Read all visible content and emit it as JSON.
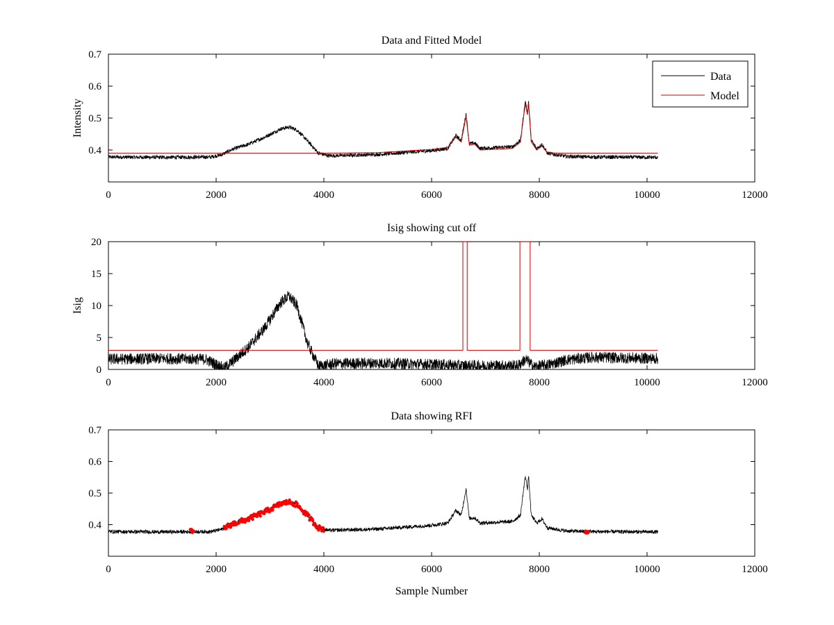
{
  "chart_data": [
    {
      "type": "line",
      "title": "Data and Fitted Model",
      "xlabel": "",
      "ylabel": "Intensity",
      "xlim": [
        0,
        12000
      ],
      "ylim": [
        0.3,
        0.7
      ],
      "xticks": [
        0,
        2000,
        4000,
        6000,
        8000,
        10000,
        12000
      ],
      "yticks": [
        0.4,
        0.5,
        0.6,
        0.7
      ],
      "legend_position": "top-right",
      "series": [
        {
          "name": "Data",
          "color": "#000000",
          "points": [
            [
              0,
              0.378
            ],
            [
              1000,
              0.377
            ],
            [
              1900,
              0.378
            ],
            [
              2100,
              0.385
            ],
            [
              2300,
              0.402
            ],
            [
              2600,
              0.418
            ],
            [
              2900,
              0.44
            ],
            [
              3200,
              0.466
            ],
            [
              3350,
              0.472
            ],
            [
              3500,
              0.463
            ],
            [
              3700,
              0.428
            ],
            [
              3900,
              0.39
            ],
            [
              4100,
              0.382
            ],
            [
              5000,
              0.386
            ],
            [
              6000,
              0.398
            ],
            [
              6300,
              0.405
            ],
            [
              6450,
              0.445
            ],
            [
              6550,
              0.43
            ],
            [
              6640,
              0.513
            ],
            [
              6700,
              0.42
            ],
            [
              6800,
              0.422
            ],
            [
              6900,
              0.405
            ],
            [
              7500,
              0.41
            ],
            [
              7650,
              0.43
            ],
            [
              7700,
              0.5
            ],
            [
              7740,
              0.553
            ],
            [
              7780,
              0.515
            ],
            [
              7800,
              0.555
            ],
            [
              7850,
              0.43
            ],
            [
              7950,
              0.405
            ],
            [
              8050,
              0.418
            ],
            [
              8150,
              0.39
            ],
            [
              8500,
              0.38
            ],
            [
              9000,
              0.378
            ],
            [
              10200,
              0.377
            ]
          ],
          "noise": 0.006
        },
        {
          "name": "Model",
          "color": "#cc0000",
          "points": [
            [
              0,
              0.39
            ],
            [
              4000,
              0.39
            ],
            [
              5000,
              0.392
            ],
            [
              6000,
              0.402
            ],
            [
              6300,
              0.408
            ],
            [
              6450,
              0.44
            ],
            [
              6550,
              0.425
            ],
            [
              6640,
              0.505
            ],
            [
              6700,
              0.415
            ],
            [
              6800,
              0.418
            ],
            [
              6900,
              0.4
            ],
            [
              7500,
              0.405
            ],
            [
              7650,
              0.425
            ],
            [
              7700,
              0.495
            ],
            [
              7740,
              0.545
            ],
            [
              7780,
              0.51
            ],
            [
              7800,
              0.545
            ],
            [
              7850,
              0.425
            ],
            [
              7950,
              0.4
            ],
            [
              8050,
              0.412
            ],
            [
              8150,
              0.392
            ],
            [
              8400,
              0.39
            ],
            [
              10200,
              0.39
            ]
          ]
        }
      ]
    },
    {
      "type": "line",
      "title": "Isig showing cut off",
      "xlabel": "",
      "ylabel": "Isig",
      "xlim": [
        0,
        12000
      ],
      "ylim": [
        0,
        20
      ],
      "xticks": [
        0,
        2000,
        4000,
        6000,
        8000,
        10000,
        12000
      ],
      "yticks": [
        0,
        5,
        10,
        15,
        20
      ],
      "series": [
        {
          "color": "#000000",
          "points": [
            [
              0,
              1.6
            ],
            [
              1000,
              1.7
            ],
            [
              1800,
              1.6
            ],
            [
              2000,
              0.8
            ],
            [
              2150,
              0.2
            ],
            [
              2300,
              1.2
            ],
            [
              2600,
              3.5
            ],
            [
              2900,
              6.5
            ],
            [
              3200,
              10.5
            ],
            [
              3350,
              11.5
            ],
            [
              3500,
              10
            ],
            [
              3700,
              4
            ],
            [
              3900,
              0.5
            ],
            [
              4200,
              0.9
            ],
            [
              5000,
              1.0
            ],
            [
              6000,
              0.8
            ],
            [
              6600,
              0.6
            ],
            [
              7000,
              0.6
            ],
            [
              7600,
              0.6
            ],
            [
              7750,
              1.6
            ],
            [
              7900,
              0.4
            ],
            [
              8200,
              0.8
            ],
            [
              8500,
              1.5
            ],
            [
              9000,
              1.9
            ],
            [
              10200,
              1.7
            ]
          ],
          "noise": 0.9
        },
        {
          "color": "#cc0000",
          "points": [
            [
              0,
              3
            ],
            [
              6580,
              3
            ],
            [
              6580,
              20
            ],
            [
              6660,
              20
            ],
            [
              6660,
              3
            ],
            [
              7640,
              3
            ],
            [
              7640,
              20
            ],
            [
              7830,
              20
            ],
            [
              7830,
              3
            ],
            [
              10200,
              3
            ]
          ]
        }
      ]
    },
    {
      "type": "line",
      "title": "Data showing RFI",
      "xlabel": "Sample Number",
      "ylabel": "",
      "xlim": [
        0,
        12000
      ],
      "ylim": [
        0.3,
        0.7
      ],
      "xticks": [
        0,
        2000,
        4000,
        6000,
        8000,
        10000,
        12000
      ],
      "yticks": [
        0.4,
        0.5,
        0.6,
        0.7
      ],
      "series": [
        {
          "color": "#000000",
          "points": [
            [
              0,
              0.378
            ],
            [
              1000,
              0.377
            ],
            [
              1900,
              0.378
            ],
            [
              2100,
              0.385
            ],
            [
              2300,
              0.402
            ],
            [
              2600,
              0.418
            ],
            [
              2900,
              0.44
            ],
            [
              3200,
              0.466
            ],
            [
              3350,
              0.472
            ],
            [
              3500,
              0.463
            ],
            [
              3700,
              0.428
            ],
            [
              3900,
              0.39
            ],
            [
              4100,
              0.382
            ],
            [
              5000,
              0.386
            ],
            [
              6000,
              0.398
            ],
            [
              6300,
              0.405
            ],
            [
              6450,
              0.445
            ],
            [
              6550,
              0.43
            ],
            [
              6640,
              0.513
            ],
            [
              6700,
              0.42
            ],
            [
              6800,
              0.422
            ],
            [
              6900,
              0.405
            ],
            [
              7500,
              0.41
            ],
            [
              7650,
              0.43
            ],
            [
              7700,
              0.5
            ],
            [
              7740,
              0.553
            ],
            [
              7780,
              0.515
            ],
            [
              7800,
              0.555
            ],
            [
              7850,
              0.43
            ],
            [
              7950,
              0.405
            ],
            [
              8050,
              0.418
            ],
            [
              8150,
              0.39
            ],
            [
              8500,
              0.38
            ],
            [
              9000,
              0.378
            ],
            [
              10200,
              0.377
            ]
          ],
          "noise": 0.006
        },
        {
          "color": "#ff0000",
          "marker": "dot",
          "ranges": [
            [
              1520,
              1580
            ],
            [
              2150,
              4000
            ],
            [
              8850,
              8920
            ]
          ],
          "noise": 0.008
        }
      ]
    }
  ]
}
